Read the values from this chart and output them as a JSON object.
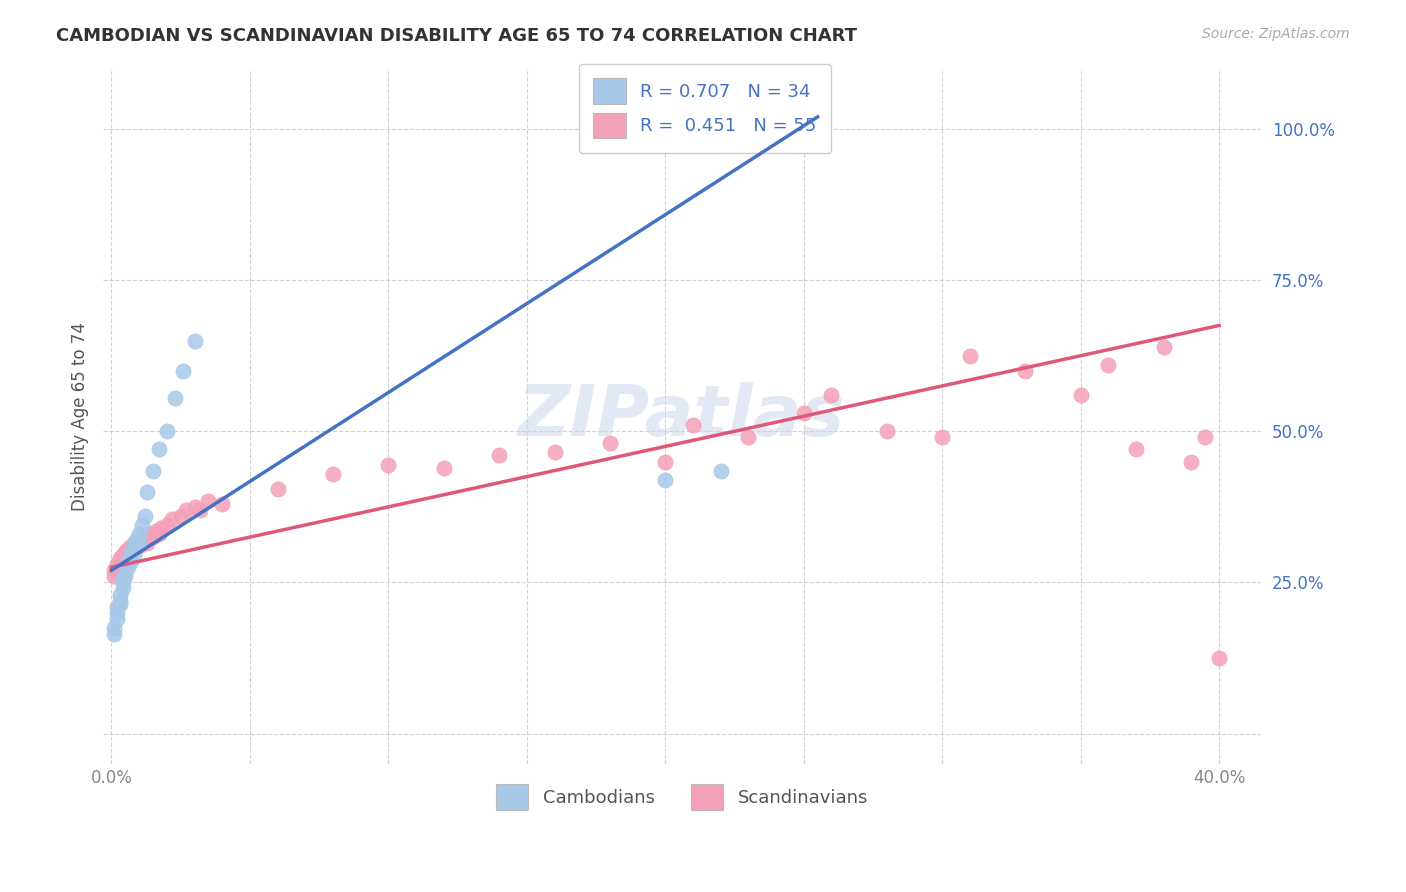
{
  "title": "CAMBODIAN VS SCANDINAVIAN DISABILITY AGE 65 TO 74 CORRELATION CHART",
  "source": "Source: ZipAtlas.com",
  "ylabel": "Disability Age 65 to 74",
  "xlim": [
    -0.003,
    0.415
  ],
  "ylim": [
    -0.05,
    1.1
  ],
  "xticks": [
    0.0,
    0.05,
    0.1,
    0.15,
    0.2,
    0.25,
    0.3,
    0.35,
    0.4
  ],
  "yticks": [
    0.0,
    0.25,
    0.5,
    0.75,
    1.0
  ],
  "cambodian_color": "#a8c8e8",
  "scandinavian_color": "#f4a0b8",
  "cambodian_line_color": "#4472c4",
  "scandinavian_line_color": "#e05878",
  "legend_text_color": "#4472c4",
  "R_cambodian": 0.707,
  "N_cambodian": 34,
  "R_scandinavian": 0.451,
  "N_scandinavian": 55,
  "cam_line_x0": 0.0,
  "cam_line_y0": 0.27,
  "cam_line_x1": 0.255,
  "cam_line_y1": 1.02,
  "scan_line_x0": 0.0,
  "scan_line_y0": 0.275,
  "scan_line_x1": 0.4,
  "scan_line_y1": 0.675,
  "cam_scatter_x": [
    0.001,
    0.001,
    0.002,
    0.002,
    0.002,
    0.003,
    0.003,
    0.003,
    0.004,
    0.004,
    0.004,
    0.005,
    0.005,
    0.006,
    0.006,
    0.007,
    0.007,
    0.008,
    0.008,
    0.009,
    0.009,
    0.01,
    0.01,
    0.011,
    0.012,
    0.013,
    0.015,
    0.017,
    0.02,
    0.023,
    0.026,
    0.03,
    0.2,
    0.22
  ],
  "cam_scatter_y": [
    0.175,
    0.165,
    0.2,
    0.21,
    0.19,
    0.23,
    0.22,
    0.215,
    0.25,
    0.255,
    0.24,
    0.265,
    0.26,
    0.285,
    0.275,
    0.3,
    0.285,
    0.315,
    0.295,
    0.32,
    0.31,
    0.33,
    0.315,
    0.345,
    0.36,
    0.4,
    0.435,
    0.47,
    0.5,
    0.555,
    0.6,
    0.65,
    0.42,
    0.435
  ],
  "scan_scatter_x": [
    0.001,
    0.001,
    0.002,
    0.002,
    0.003,
    0.003,
    0.004,
    0.004,
    0.005,
    0.005,
    0.006,
    0.006,
    0.007,
    0.008,
    0.009,
    0.01,
    0.011,
    0.012,
    0.013,
    0.014,
    0.015,
    0.016,
    0.017,
    0.018,
    0.02,
    0.022,
    0.025,
    0.027,
    0.03,
    0.032,
    0.035,
    0.04,
    0.06,
    0.08,
    0.1,
    0.12,
    0.14,
    0.16,
    0.18,
    0.2,
    0.21,
    0.23,
    0.25,
    0.26,
    0.28,
    0.3,
    0.31,
    0.33,
    0.35,
    0.36,
    0.37,
    0.38,
    0.39,
    0.395,
    0.4
  ],
  "scan_scatter_y": [
    0.27,
    0.26,
    0.28,
    0.265,
    0.29,
    0.275,
    0.295,
    0.285,
    0.3,
    0.29,
    0.305,
    0.295,
    0.31,
    0.305,
    0.315,
    0.31,
    0.32,
    0.325,
    0.315,
    0.33,
    0.325,
    0.335,
    0.33,
    0.34,
    0.345,
    0.355,
    0.36,
    0.37,
    0.375,
    0.37,
    0.385,
    0.38,
    0.405,
    0.43,
    0.445,
    0.44,
    0.46,
    0.465,
    0.48,
    0.45,
    0.51,
    0.49,
    0.53,
    0.56,
    0.5,
    0.49,
    0.625,
    0.6,
    0.56,
    0.61,
    0.47,
    0.64,
    0.45,
    0.49,
    0.125
  ]
}
